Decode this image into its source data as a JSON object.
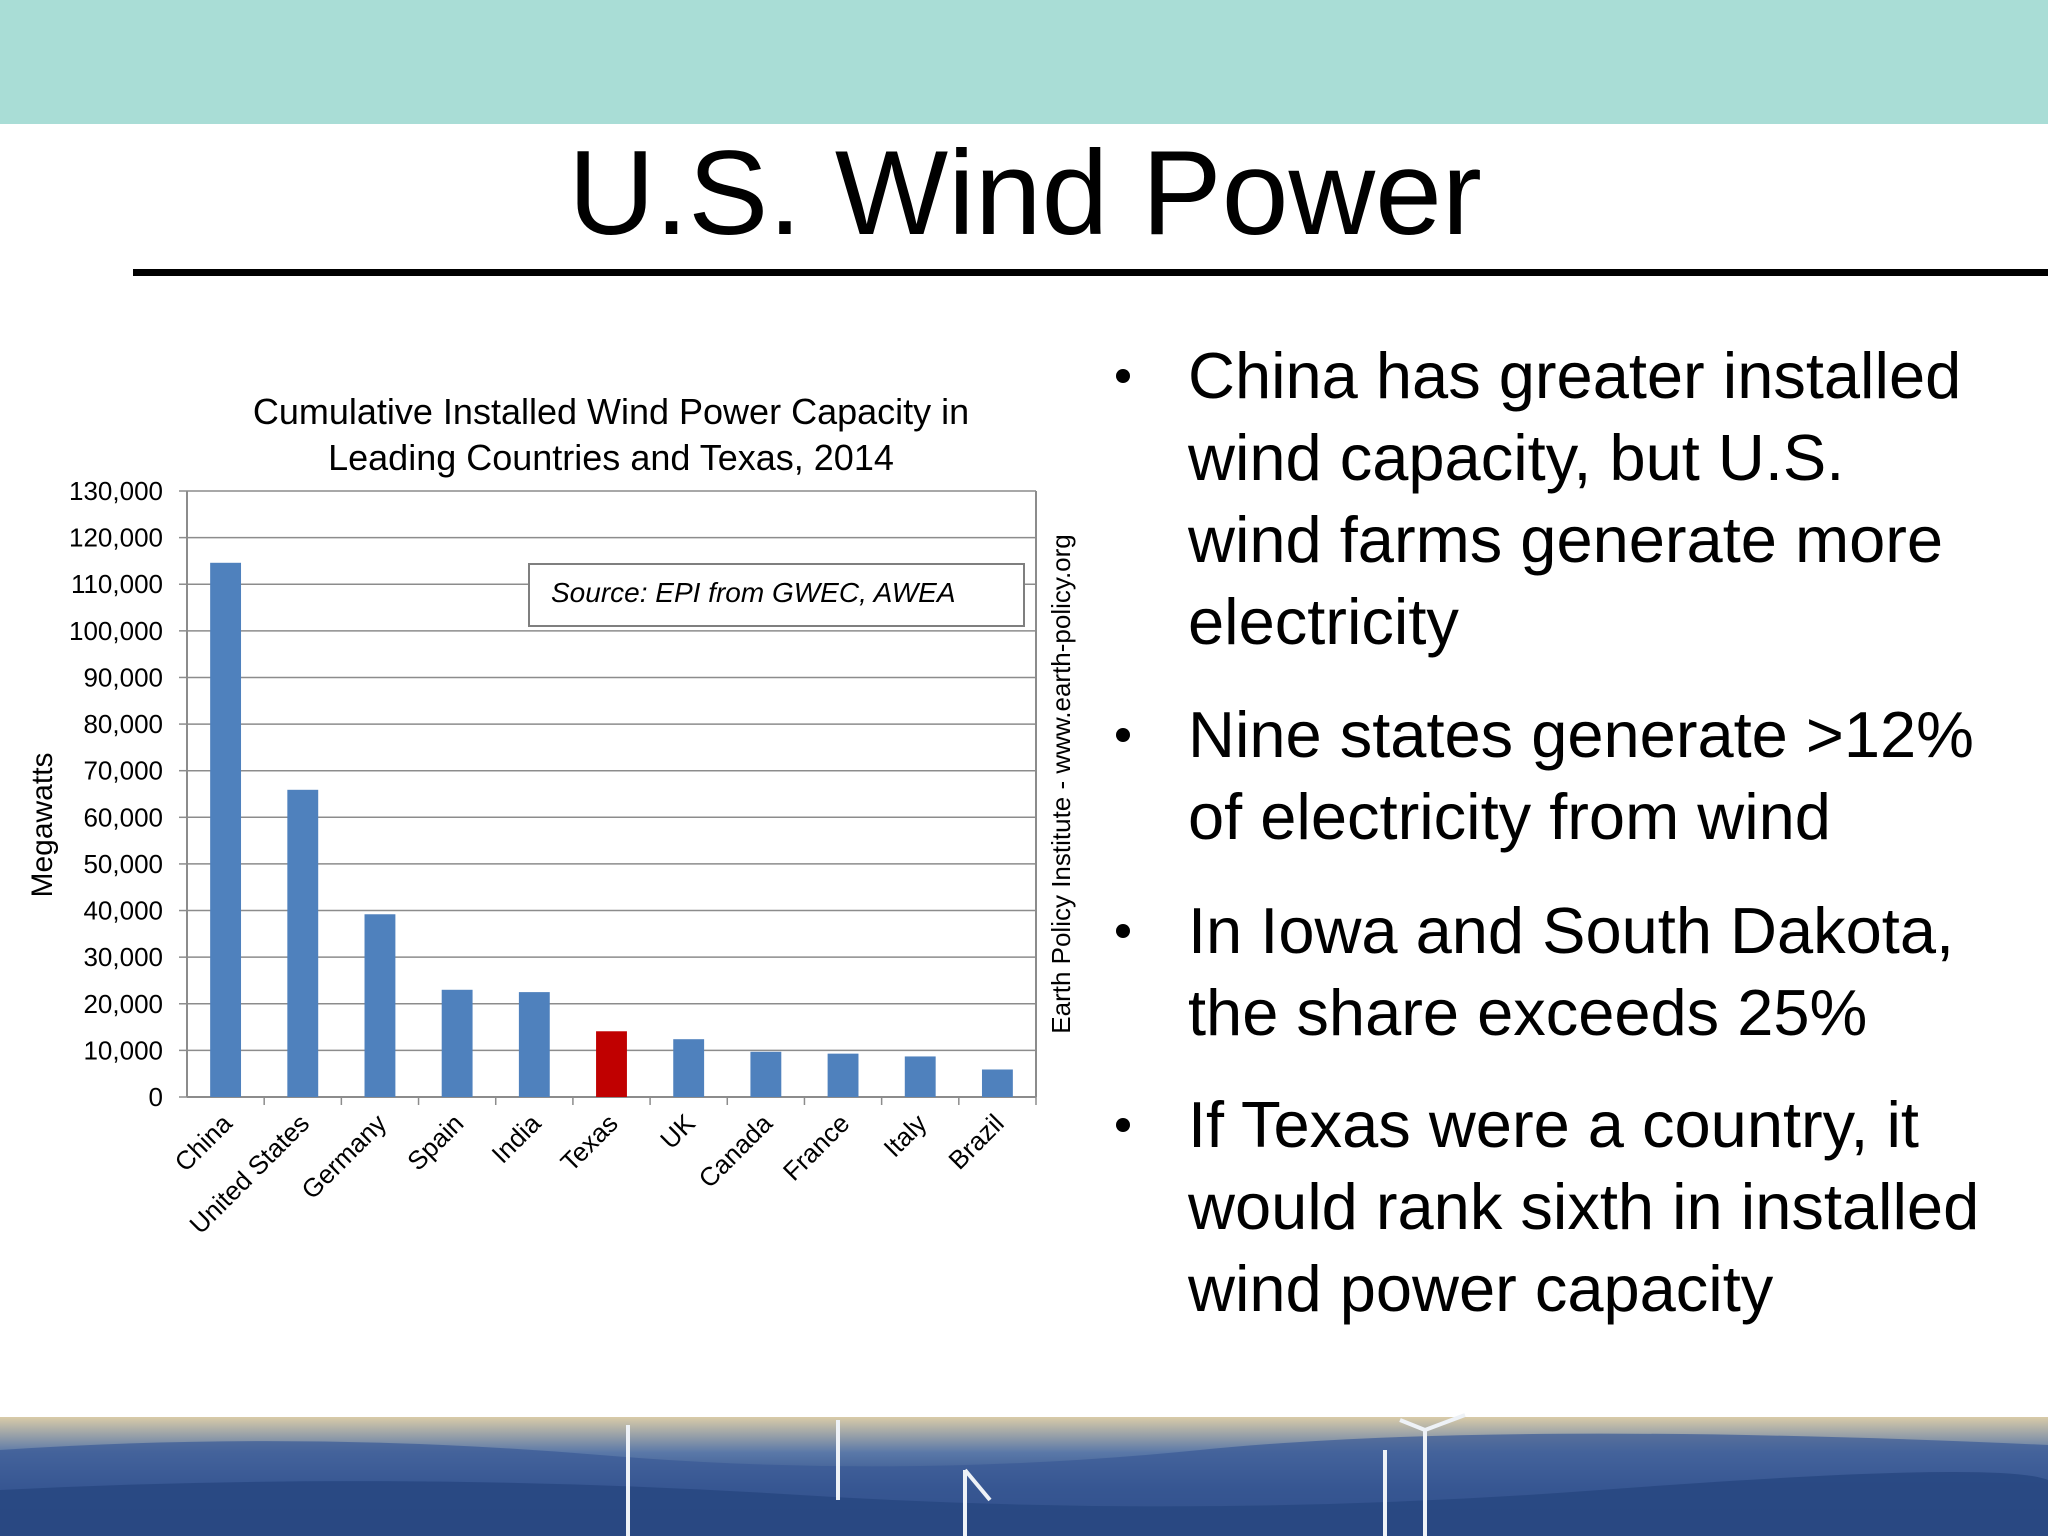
{
  "slide": {
    "title": "U.S. Wind Power",
    "bullets": [
      [
        "China has greater installed",
        "wind capacity, but U.S.",
        "wind farms generate more",
        "electricity"
      ],
      [
        "Nine states generate >12%",
        "of electricity from wind"
      ],
      [
        "In Iowa and South Dakota,",
        "the share exceeds 25%"
      ],
      [
        "If Texas were a country, it",
        "would rank sixth in installed",
        "wind power capacity"
      ]
    ]
  },
  "chart_data": {
    "type": "bar",
    "title": [
      "Cumulative Installed Wind Power Capacity in",
      "Leading Countries and Texas, 2014"
    ],
    "y_label": "Megawatts",
    "source": "Source: EPI from GWEC, AWEA",
    "side_note": "Earth Policy Institute - www.earth-policy.org",
    "categories": [
      "China",
      "United States",
      "Germany",
      "Spain",
      "India",
      "Texas",
      "UK",
      "Canada",
      "France",
      "Italy",
      "Brazil"
    ],
    "values": [
      114600,
      65900,
      39200,
      23000,
      22500,
      14100,
      12400,
      9700,
      9300,
      8700,
      5900
    ],
    "colors": [
      "#4f81bd",
      "#4f81bd",
      "#4f81bd",
      "#4f81bd",
      "#4f81bd",
      "#c00000",
      "#4f81bd",
      "#4f81bd",
      "#4f81bd",
      "#4f81bd",
      "#4f81bd"
    ],
    "ylim": [
      0,
      130000
    ],
    "yticks": [
      0,
      {
        "value": 10000,
        "label": "10,000"
      },
      {
        "value": 20000,
        "label": "20,000"
      },
      {
        "value": 30000,
        "label": "30,000"
      },
      {
        "value": 40000,
        "label": "40,000"
      },
      {
        "value": 50000,
        "label": "50,000"
      },
      {
        "value": 60000,
        "label": "60,000"
      },
      {
        "value": 70000,
        "label": "70,000"
      },
      {
        "value": 80000,
        "label": "80,000"
      },
      {
        "value": 90000,
        "label": "90,000"
      },
      {
        "value": 100000,
        "label": "100,000"
      },
      {
        "value": 110000,
        "label": "110,000"
      },
      {
        "value": 120000,
        "label": "120,000"
      },
      {
        "value": 130000,
        "label": "130,000"
      }
    ],
    "grid": true
  }
}
